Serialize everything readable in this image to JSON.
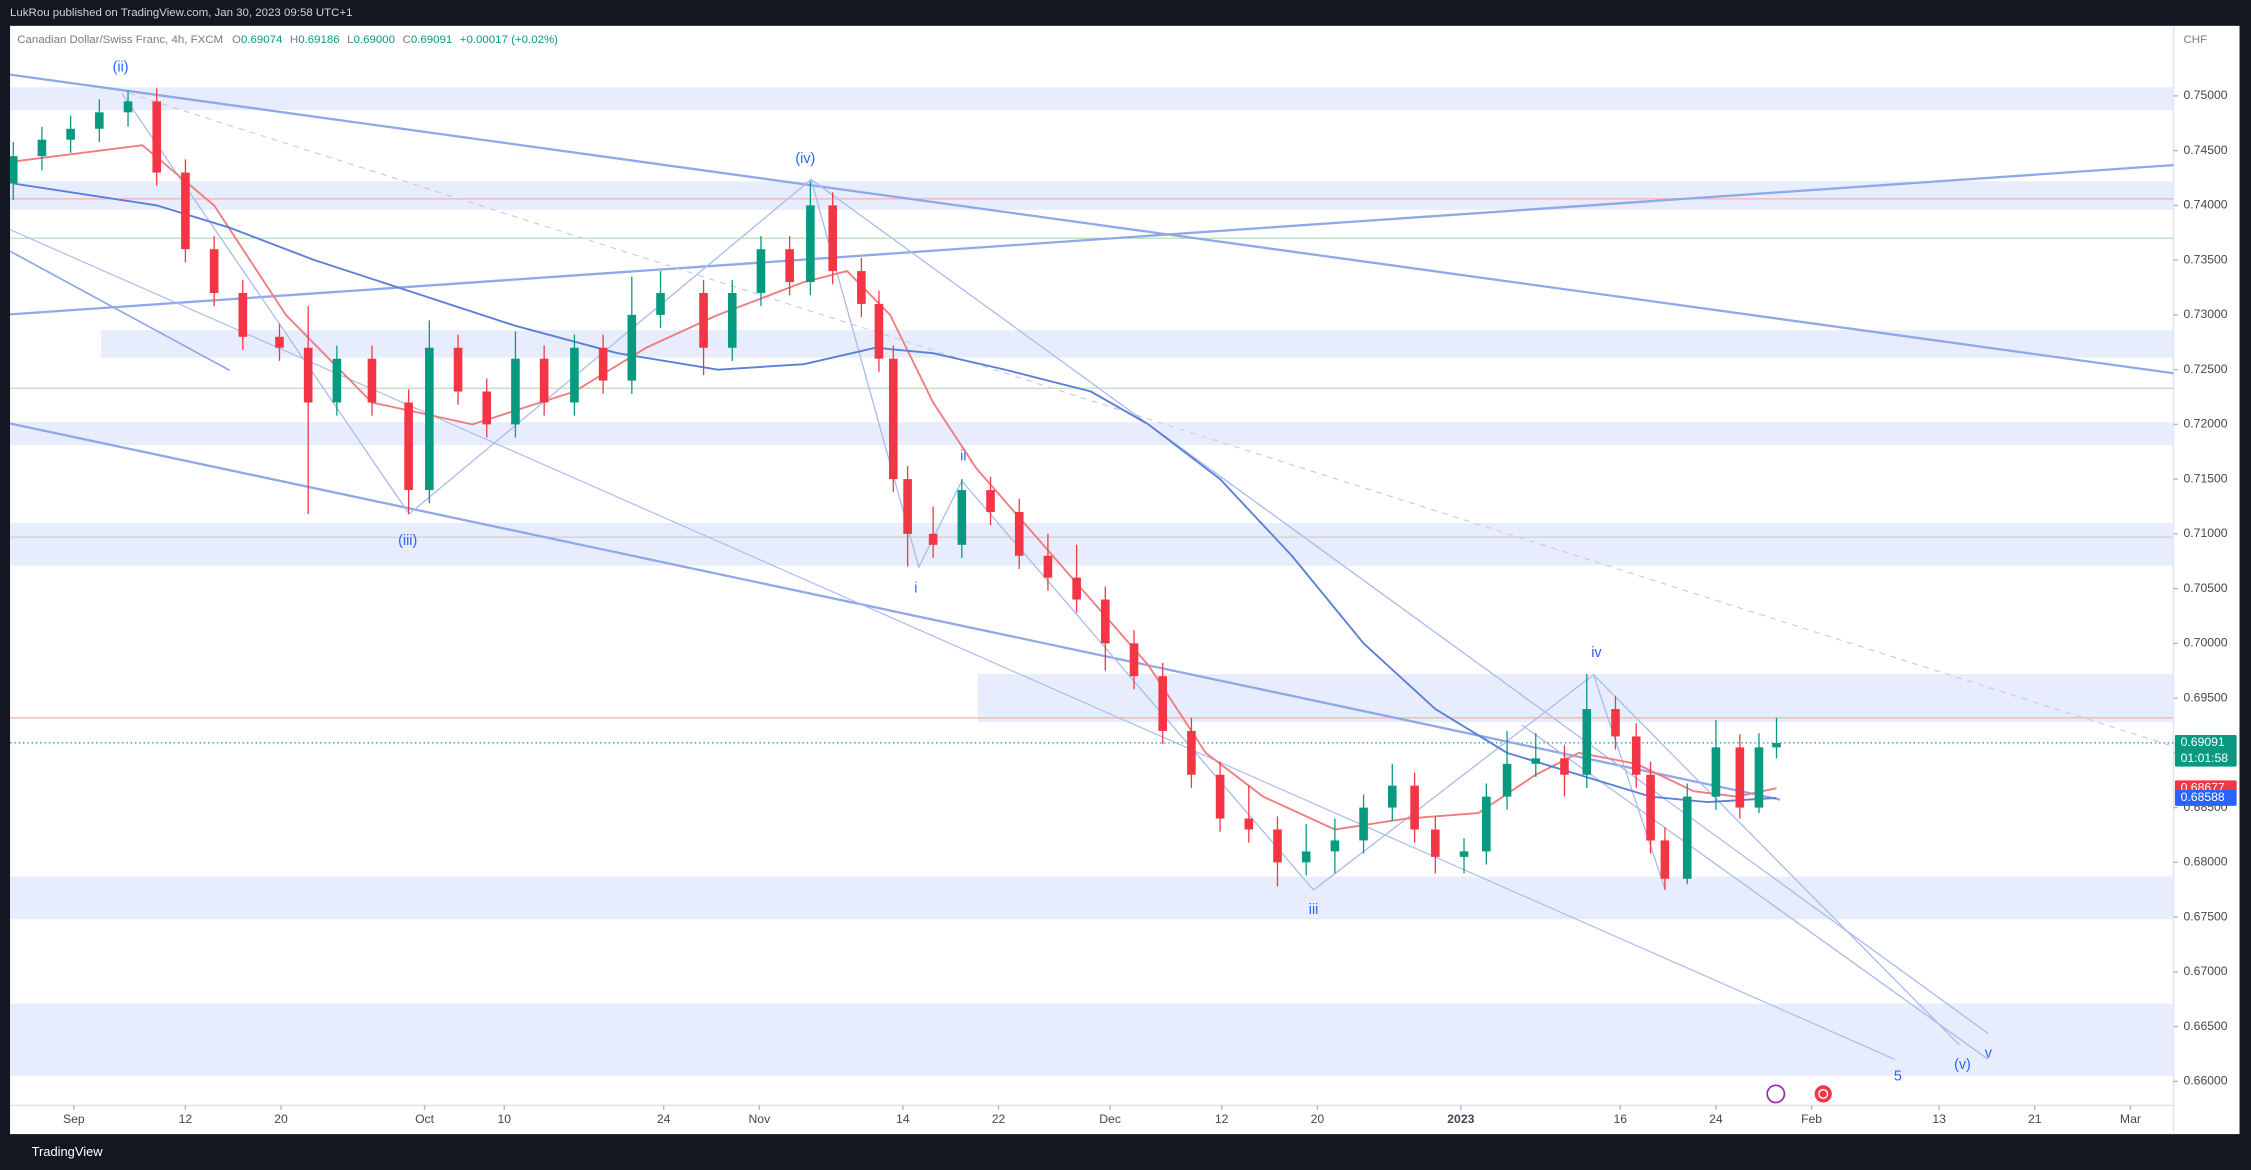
{
  "chart_data": {
    "type": "candlestick",
    "publisher": "LukRou published on TradingView.com, Jan 30, 2023 09:58 UTC+1",
    "symbol": "Canadian Dollar/Swiss Franc, 4h, FXCM",
    "ohlc": [
      {
        "label": "O",
        "value": "0.69074"
      },
      {
        "label": "H",
        "value": "0.69186"
      },
      {
        "label": "L",
        "value": "0.69000"
      },
      {
        "label": "C",
        "value": "0.69091"
      }
    ],
    "change": "+0.00017 (+0.02%)",
    "currency": "CHF",
    "footer": "TradingView",
    "up_color": "#089981",
    "down_color": "#f23645",
    "xlim": [
      -4,
      131.7
    ],
    "xticks": [
      {
        "value": 0,
        "label": "Sep"
      },
      {
        "value": 7,
        "label": "12"
      },
      {
        "value": 13,
        "label": "20"
      },
      {
        "value": 22,
        "label": "Oct"
      },
      {
        "value": 27,
        "label": "10"
      },
      {
        "value": 37,
        "label": "24"
      },
      {
        "value": 43,
        "label": "Nov"
      },
      {
        "value": 52,
        "label": "14"
      },
      {
        "value": 58,
        "label": "22"
      },
      {
        "value": 65,
        "label": "Dec"
      },
      {
        "value": 72,
        "label": "12"
      },
      {
        "value": 78,
        "label": "20"
      },
      {
        "value": 87,
        "label": "2023"
      },
      {
        "value": 97,
        "label": "16"
      },
      {
        "value": 103,
        "label": "24"
      },
      {
        "value": 109,
        "label": "Feb"
      },
      {
        "value": 117,
        "label": "13"
      },
      {
        "value": 123,
        "label": "21"
      },
      {
        "value": 129,
        "label": "Mar"
      }
    ],
    "ylim": [
      0.6578,
      0.7564
    ],
    "yticks": [
      {
        "value": 0.75,
        "label": "0.75000"
      },
      {
        "value": 0.745,
        "label": "0.74500"
      },
      {
        "value": 0.74,
        "label": "0.74000"
      },
      {
        "value": 0.735,
        "label": "0.73500"
      },
      {
        "value": 0.73,
        "label": "0.73000"
      },
      {
        "value": 0.725,
        "label": "0.72500"
      },
      {
        "value": 0.72,
        "label": "0.72000"
      },
      {
        "value": 0.715,
        "label": "0.71500"
      },
      {
        "value": 0.71,
        "label": "0.71000"
      },
      {
        "value": 0.705,
        "label": "0.70500"
      },
      {
        "value": 0.7,
        "label": "0.70000"
      },
      {
        "value": 0.695,
        "label": "0.69500"
      },
      {
        "value": 0.69,
        "label": "0.69000"
      },
      {
        "value": 0.685,
        "label": "0.68500"
      },
      {
        "value": 0.68,
        "label": "0.68000"
      },
      {
        "value": 0.675,
        "label": "0.67500"
      },
      {
        "value": 0.67,
        "label": "0.67000"
      },
      {
        "value": 0.665,
        "label": "0.66500"
      },
      {
        "value": 0.66,
        "label": "0.66000"
      }
    ],
    "x": [
      -3.8,
      -2.0,
      -0.2,
      1.6,
      3.4,
      5.2,
      7.0,
      8.8,
      10.6,
      12.9,
      14.7,
      16.5,
      18.7,
      21.0,
      22.3,
      24.1,
      25.9,
      27.7,
      29.5,
      31.4,
      33.2,
      35.0,
      36.8,
      39.5,
      41.3,
      43.1,
      44.9,
      46.2,
      47.6,
      49.4,
      50.5,
      51.4,
      52.3,
      53.9,
      55.7,
      57.5,
      59.3,
      61.1,
      62.9,
      64.7,
      66.5,
      68.3,
      70.1,
      71.9,
      73.7,
      75.5,
      77.3,
      79.1,
      80.9,
      82.7,
      84.1,
      85.4,
      87.2,
      88.6,
      89.9,
      91.7,
      93.5,
      94.9,
      96.7,
      98.0,
      98.9,
      99.8,
      101.2,
      103.0,
      104.5,
      105.7,
      106.8
    ],
    "open": [
      0.742,
      0.7445,
      0.746,
      0.747,
      0.7485,
      0.7495,
      0.743,
      0.736,
      0.732,
      0.728,
      0.727,
      0.722,
      0.726,
      0.722,
      0.714,
      0.727,
      0.723,
      0.72,
      0.726,
      0.722,
      0.727,
      0.724,
      0.73,
      0.732,
      0.727,
      0.732,
      0.736,
      0.733,
      0.74,
      0.734,
      0.731,
      0.726,
      0.715,
      0.71,
      0.709,
      0.714,
      0.712,
      0.708,
      0.706,
      0.704,
      0.7,
      0.697,
      0.692,
      0.688,
      0.684,
      0.683,
      0.68,
      0.681,
      0.682,
      0.685,
      0.687,
      0.683,
      0.6805,
      0.681,
      0.686,
      0.689,
      0.6895,
      0.688,
      0.694,
      0.6915,
      0.688,
      0.682,
      0.6785,
      0.686,
      0.6905,
      0.685,
      0.6905
    ],
    "high": [
      0.7458,
      0.7472,
      0.7482,
      0.7497,
      0.7505,
      0.7507,
      0.7442,
      0.7372,
      0.7332,
      0.7292,
      0.7308,
      0.7272,
      0.7272,
      0.7232,
      0.7295,
      0.7282,
      0.7242,
      0.7285,
      0.7272,
      0.7282,
      0.7282,
      0.7335,
      0.734,
      0.7332,
      0.7332,
      0.7372,
      0.7372,
      0.7422,
      0.7412,
      0.7352,
      0.7322,
      0.7272,
      0.7162,
      0.7125,
      0.715,
      0.7152,
      0.7132,
      0.71,
      0.709,
      0.7052,
      0.7012,
      0.6982,
      0.6932,
      0.6892,
      0.687,
      0.6842,
      0.6835,
      0.684,
      0.6862,
      0.689,
      0.6882,
      0.6842,
      0.6822,
      0.6872,
      0.692,
      0.6918,
      0.6907,
      0.6972,
      0.6952,
      0.6927,
      0.6892,
      0.6832,
      0.6872,
      0.693,
      0.6917,
      0.6918,
      0.6932
    ],
    "low": [
      0.7405,
      0.7432,
      0.7448,
      0.7458,
      0.7472,
      0.7418,
      0.7348,
      0.7308,
      0.7268,
      0.7258,
      0.7118,
      0.7208,
      0.7208,
      0.7118,
      0.7128,
      0.7218,
      0.7188,
      0.7188,
      0.7208,
      0.7208,
      0.7228,
      0.7228,
      0.7288,
      0.7245,
      0.7258,
      0.7308,
      0.7318,
      0.7318,
      0.7328,
      0.7298,
      0.7248,
      0.7138,
      0.707,
      0.7078,
      0.7078,
      0.7108,
      0.7068,
      0.7048,
      0.7028,
      0.6975,
      0.6958,
      0.6908,
      0.6868,
      0.6828,
      0.6818,
      0.6778,
      0.6788,
      0.679,
      0.6808,
      0.6838,
      0.6818,
      0.679,
      0.679,
      0.6798,
      0.6848,
      0.6878,
      0.686,
      0.6868,
      0.6903,
      0.6868,
      0.6808,
      0.6775,
      0.678,
      0.6848,
      0.684,
      0.6845,
      0.6895
    ],
    "close": [
      0.7445,
      0.746,
      0.747,
      0.7485,
      0.7495,
      0.743,
      0.736,
      0.732,
      0.728,
      0.727,
      0.722,
      0.726,
      0.722,
      0.714,
      0.727,
      0.723,
      0.72,
      0.726,
      0.722,
      0.727,
      0.724,
      0.73,
      0.732,
      0.727,
      0.732,
      0.736,
      0.733,
      0.74,
      0.734,
      0.731,
      0.726,
      0.715,
      0.71,
      0.709,
      0.714,
      0.712,
      0.708,
      0.706,
      0.704,
      0.7,
      0.697,
      0.692,
      0.688,
      0.684,
      0.683,
      0.68,
      0.681,
      0.682,
      0.685,
      0.687,
      0.683,
      0.6805,
      0.681,
      0.686,
      0.689,
      0.6895,
      0.688,
      0.694,
      0.6915,
      0.688,
      0.682,
      0.6785,
      0.686,
      0.6905,
      0.685,
      0.6905,
      0.6909
    ],
    "overlays": [
      {
        "color": "#f07c82",
        "x": [
          -3.8,
          4.3,
          8.8,
          13.3,
          18.7,
          25.0,
          31.4,
          35.9,
          40.4,
          45.8,
          48.5,
          51.2,
          53.9,
          56.6,
          60.2,
          63.8,
          67.4,
          71.0,
          74.6,
          79.1,
          83.6,
          88.1,
          91.7,
          94.4,
          98.0,
          101.6,
          104.3,
          106.8
        ],
        "values": [
          0.744,
          0.7455,
          0.74,
          0.73,
          0.722,
          0.72,
          0.723,
          0.727,
          0.73,
          0.733,
          0.734,
          0.73,
          0.722,
          0.716,
          0.71,
          0.704,
          0.698,
          0.69,
          0.686,
          0.683,
          0.684,
          0.6845,
          0.688,
          0.69,
          0.689,
          0.6865,
          0.686,
          0.68677
        ]
      },
      {
        "color": "#5b7fd6",
        "x": [
          -3.8,
          0.7,
          5.2,
          9.7,
          15.1,
          21.4,
          27.7,
          34.1,
          40.4,
          45.8,
          50.3,
          53.9,
          58.4,
          63.8,
          67.4,
          71.9,
          76.4,
          80.9,
          85.4,
          89.9,
          94.4,
          98.9,
          102.5,
          106.8
        ],
        "values": [
          0.742,
          0.741,
          0.74,
          0.738,
          0.735,
          0.732,
          0.729,
          0.7265,
          0.725,
          0.7255,
          0.727,
          0.7265,
          0.725,
          0.723,
          0.72,
          0.715,
          0.708,
          0.7,
          0.694,
          0.69,
          0.688,
          0.686,
          0.6855,
          0.68588
        ]
      }
    ],
    "zones": [
      {
        "range": [
          0.7487,
          0.7508
        ]
      },
      {
        "range": [
          0.7396,
          0.7422
        ]
      },
      {
        "start": 1.7,
        "range": [
          0.7261,
          0.7286
        ]
      },
      {
        "range": [
          0.7181,
          0.7202
        ]
      },
      {
        "range": [
          0.7071,
          0.711
        ]
      },
      {
        "start": 56.7,
        "range": [
          0.6928,
          0.6972
        ]
      },
      {
        "range": [
          0.6748,
          0.6787
        ]
      },
      {
        "range": [
          0.6605,
          0.6671
        ]
      }
    ],
    "levels": [
      {
        "value": 0.7406,
        "color": "#f5b5b5"
      },
      {
        "value": 0.737,
        "color": "#b7dfb9"
      },
      {
        "value": 0.7233,
        "color": "#b7dfb9"
      },
      {
        "value": 0.7097,
        "color": "#cfcfcf"
      },
      {
        "value": 0.6932,
        "color": "#f5b5b5"
      }
    ],
    "price_badges": [
      {
        "value": 0.69091,
        "label": "0.69091",
        "sub": "01:01:58",
        "color": "#089981"
      },
      {
        "value": 0.68677,
        "label": "0.68677",
        "color": "#f23645"
      },
      {
        "value": 0.68588,
        "label": "0.68588",
        "color": "#2962ff"
      }
    ],
    "annotations": [
      "(ii)",
      "(iii)",
      "(iv)",
      "i",
      "ii",
      "iii",
      "iv",
      "(v)",
      "v",
      "5"
    ]
  }
}
